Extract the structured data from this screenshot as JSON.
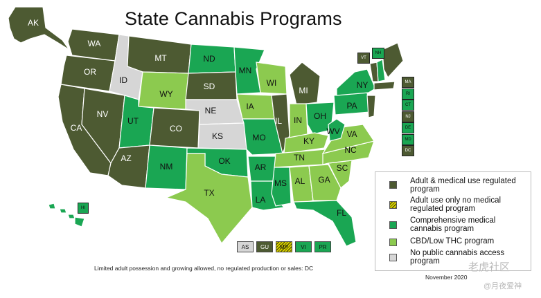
{
  "title": "State Cannabis Programs",
  "colors": {
    "adult": "#4d5a32",
    "adult_only": "#d8d000",
    "comprehensive": "#1aa653",
    "cbd": "#8cca4f",
    "none": "#d6d6d6"
  },
  "legend": [
    {
      "key": "adult",
      "label": "Adult & medical use regulated program"
    },
    {
      "key": "adult_only",
      "label": "Adult use only no medical regulated program"
    },
    {
      "key": "comprehensive",
      "label": "Comprehensive medical cannabis program"
    },
    {
      "key": "cbd",
      "label": "CBD/Low THC program"
    },
    {
      "key": "none",
      "label": "No public cannabis access program"
    }
  ],
  "states": {
    "AK": "adult",
    "WA": "adult",
    "OR": "adult",
    "CA": "adult",
    "NV": "adult",
    "ID": "none",
    "MT": "adult",
    "WY": "cbd",
    "UT": "comprehensive",
    "AZ": "adult",
    "CO": "adult",
    "NM": "comprehensive",
    "ND": "comprehensive",
    "SD": "adult",
    "NE": "none",
    "KS": "none",
    "OK": "comprehensive",
    "TX": "cbd",
    "MN": "comprehensive",
    "IA": "cbd",
    "MO": "comprehensive",
    "AR": "comprehensive",
    "LA": "comprehensive",
    "WI": "cbd",
    "IL": "adult",
    "MI": "adult",
    "IN": "cbd",
    "OH": "comprehensive",
    "KY": "cbd",
    "TN": "cbd",
    "MS": "comprehensive",
    "AL": "cbd",
    "GA": "cbd",
    "FL": "comprehensive",
    "SC": "cbd",
    "NC": "cbd",
    "VA": "cbd",
    "WV": "comprehensive",
    "PA": "comprehensive",
    "NY": "comprehensive",
    "VT": "adult",
    "NH": "comprehensive",
    "ME": "adult",
    "MA": "adult",
    "NJ": "adult",
    "HI": "comprehensive"
  },
  "east_boxes": [
    {
      "label": "MA",
      "status": "adult"
    },
    {
      "label": "RI",
      "status": "comprehensive"
    },
    {
      "label": "CT",
      "status": "comprehensive"
    },
    {
      "label": "NJ",
      "status": "adult"
    },
    {
      "label": "DE",
      "status": "comprehensive"
    },
    {
      "label": "MD",
      "status": "comprehensive"
    },
    {
      "label": "DC",
      "status": "adult"
    }
  ],
  "small_boxes": [
    {
      "label": "VT",
      "status": "adult"
    },
    {
      "label": "NH",
      "status": "comprehensive"
    }
  ],
  "territories": [
    {
      "label": "AS",
      "status": "none"
    },
    {
      "label": "GU",
      "status": "adult"
    },
    {
      "label": "MP",
      "status": "adult_only"
    },
    {
      "label": "VI",
      "status": "comprehensive"
    },
    {
      "label": "PR",
      "status": "comprehensive"
    }
  ],
  "footnote": "Limited adult possession and growing allowed, no regulated production or sales: DC",
  "date": "November 2020",
  "watermark_line1": "老虎社区",
  "watermark_line2": "@月夜爱神"
}
